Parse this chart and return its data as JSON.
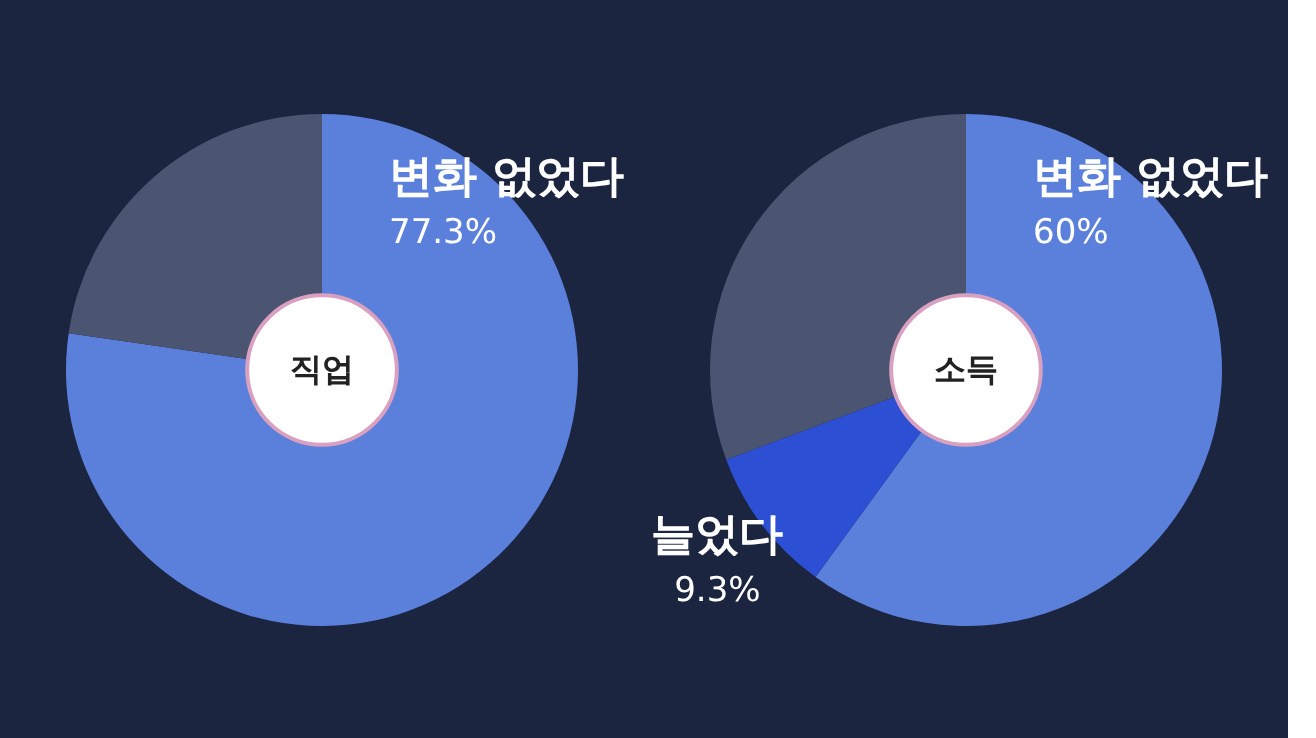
{
  "chart_data": [
    {
      "type": "donut",
      "title": "직업",
      "categories": [
        "변화 없었다",
        null
      ],
      "values": [
        77.3,
        22.7
      ],
      "colors": [
        "#5b80dc",
        "#4b5470"
      ],
      "value_labels": [
        "77.3%",
        null
      ]
    },
    {
      "type": "donut",
      "title": "소득",
      "categories": [
        "변화 없었다",
        "늘었다",
        null
      ],
      "values": [
        60,
        9.3,
        30.7
      ],
      "colors": [
        "#5b80dc",
        "#2c4fd4",
        "#4b5470"
      ],
      "value_labels": [
        "60%",
        "9.3%",
        null
      ]
    }
  ]
}
